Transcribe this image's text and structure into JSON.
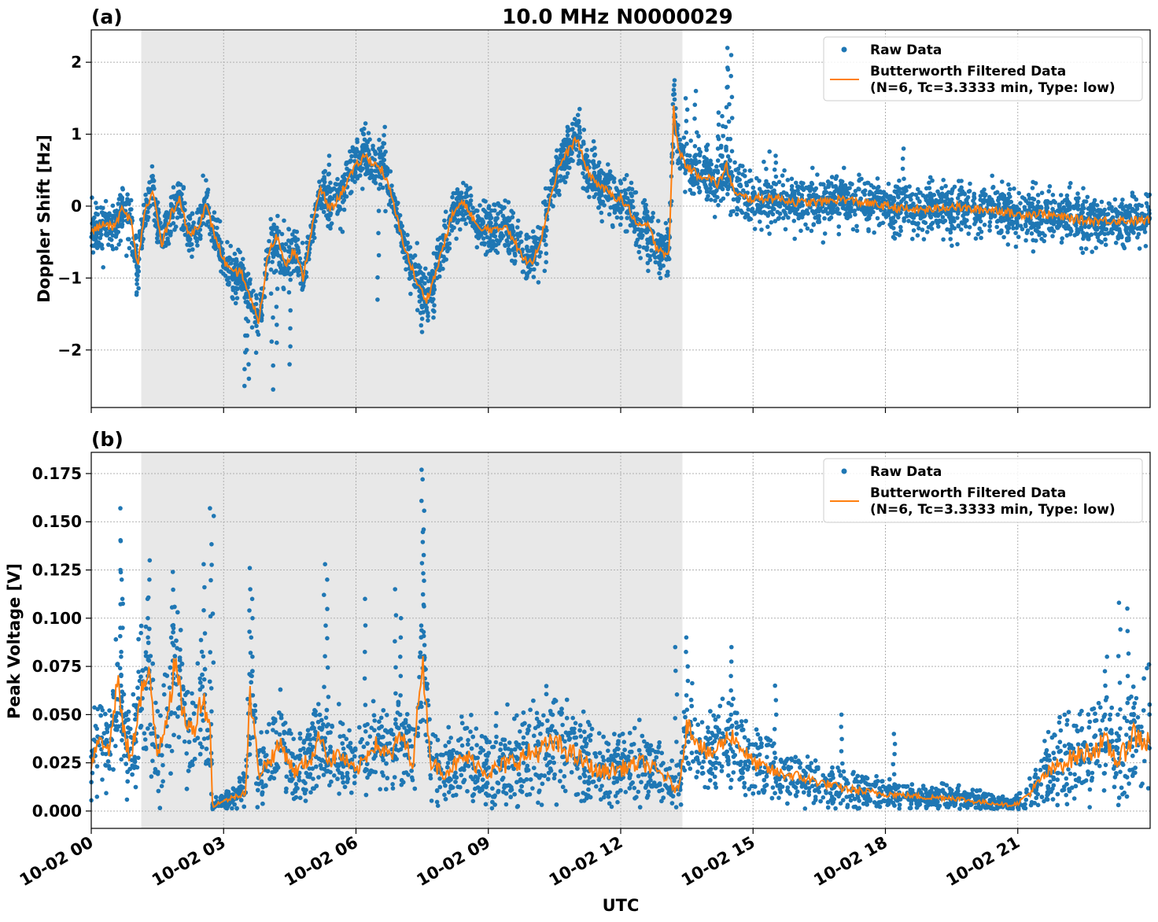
{
  "figure": {
    "title": "10.0 MHz N0000029",
    "xlabel": "UTC"
  },
  "colors": {
    "raw": "#1f77b4",
    "filtered": "#ff7f0e",
    "shade": "#e8e8e8",
    "grid": "#b0b0b0"
  },
  "chart_data": [
    {
      "type": "scatter",
      "panel_label": "(a)",
      "ylabel": "Doppler Shift [Hz]",
      "xlim": [
        "10-02 00:00",
        "10-03 00:00"
      ],
      "ylim": [
        -2.8,
        2.45
      ],
      "x_ticks": [
        "10-02 00",
        "10-02 03",
        "10-02 06",
        "10-02 09",
        "10-02 12",
        "10-02 15",
        "10-02 18",
        "10-02 21"
      ],
      "y_ticks": [
        {
          "value": 2,
          "label": "2"
        },
        {
          "value": 1,
          "label": "1"
        },
        {
          "value": 0,
          "label": "0"
        },
        {
          "value": -1,
          "label": "−1"
        },
        {
          "value": -2,
          "label": "−2"
        }
      ],
      "shaded_interval": [
        "10-02 01:08",
        "10-02 13:24"
      ],
      "grid": true,
      "legend": {
        "placement": "top-right",
        "entries": [
          {
            "label": "Raw Data"
          },
          {
            "label": "Butterworth Filtered Data",
            "label2": "(N=6, Tc=3.3333 min, Type: low)"
          }
        ]
      },
      "series": [
        {
          "name": "Butterworth Filtered Data",
          "kind": "line",
          "x_hours": [
            0,
            0.3,
            0.5,
            0.7,
            0.9,
            1.05,
            1.2,
            1.4,
            1.6,
            1.8,
            2.0,
            2.2,
            2.4,
            2.6,
            2.8,
            3.0,
            3.2,
            3.4,
            3.6,
            3.8,
            4.0,
            4.2,
            4.4,
            4.6,
            4.8,
            5.0,
            5.2,
            5.4,
            5.6,
            5.8,
            6.0,
            6.2,
            6.4,
            6.6,
            6.8,
            7.0,
            7.2,
            7.4,
            7.6,
            7.8,
            8.0,
            8.2,
            8.4,
            8.6,
            8.8,
            9.0,
            9.2,
            9.4,
            9.6,
            9.8,
            10.0,
            10.2,
            10.4,
            10.6,
            10.8,
            11.0,
            11.2,
            11.4,
            11.6,
            11.8,
            12.0,
            12.2,
            12.4,
            12.6,
            12.8,
            13.0,
            13.1,
            13.2,
            13.3,
            13.5,
            13.7,
            14.0,
            14.2,
            14.4,
            14.6,
            15.0,
            15.5,
            16.0,
            16.5,
            17.0,
            17.5,
            18.0,
            18.5,
            19.0,
            19.5,
            20.0,
            20.5,
            21.0,
            21.5,
            22.0,
            22.5,
            23.0,
            23.5,
            24.0
          ],
          "y": [
            -0.35,
            -0.25,
            -0.3,
            -0.05,
            -0.2,
            -0.85,
            -0.1,
            0.2,
            -0.55,
            -0.1,
            0.1,
            -0.4,
            -0.3,
            0.0,
            -0.4,
            -0.75,
            -0.95,
            -0.9,
            -1.3,
            -1.6,
            -0.7,
            -0.4,
            -0.8,
            -0.6,
            -1.0,
            -0.3,
            0.25,
            -0.05,
            0.1,
            0.35,
            0.55,
            0.7,
            0.6,
            0.5,
            0.15,
            -0.35,
            -0.75,
            -1.1,
            -1.3,
            -0.95,
            -0.5,
            -0.1,
            0.05,
            -0.1,
            -0.35,
            -0.3,
            -0.35,
            -0.25,
            -0.5,
            -0.75,
            -0.75,
            -0.45,
            0.1,
            0.55,
            0.75,
            0.95,
            0.55,
            0.35,
            0.25,
            0.15,
            0.1,
            -0.05,
            -0.3,
            -0.25,
            -0.55,
            -0.65,
            -0.65,
            1.35,
            0.8,
            0.55,
            0.45,
            0.4,
            0.3,
            0.55,
            0.15,
            0.1,
            0.12,
            0.05,
            0.05,
            0.1,
            0.05,
            0.0,
            -0.05,
            -0.05,
            0.0,
            -0.05,
            -0.05,
            -0.12,
            -0.1,
            -0.15,
            -0.2,
            -0.2,
            -0.2,
            -0.2
          ]
        },
        {
          "name": "Raw Data",
          "kind": "points",
          "note_spread": "scatter spread around filtered curve",
          "x_hours": [
            0.7,
            1.05,
            1.5,
            2.0,
            3.0,
            3.3,
            3.5,
            3.55,
            4.1,
            4.2,
            4.5,
            5.4,
            6.2,
            6.5,
            6.65,
            7.5,
            7.75,
            10.3,
            10.8,
            11.05,
            11.4,
            12.6,
            12.9,
            13.2,
            13.25,
            13.5,
            13.7,
            14.2,
            14.3,
            14.4,
            14.45,
            14.5,
            15.5,
            17.0,
            18.2,
            18.4,
            19.0,
            19.5,
            20.8
          ],
          "y": [
            0.05,
            -1.2,
            -0.5,
            0.2,
            -0.85,
            -1.35,
            -2.5,
            -2.4,
            -2.55,
            -1.9,
            -2.2,
            0.7,
            1.15,
            -1.3,
            1.1,
            -1.75,
            -1.55,
            -0.9,
            1.1,
            1.35,
            0.9,
            -0.9,
            -1.0,
            1.75,
            1.0,
            1.5,
            1.6,
            1.3,
            1.25,
            2.2,
            1.9,
            2.1,
            0.7,
            0.35,
            -0.45,
            0.8,
            0.4,
            -0.55,
            0.3
          ]
        }
      ]
    },
    {
      "type": "scatter",
      "panel_label": "(b)",
      "ylabel": "Peak Voltage [V]",
      "xlim": [
        "10-02 00:00",
        "10-03 00:00"
      ],
      "ylim": [
        -0.009,
        0.186
      ],
      "x_ticks": [
        "10-02 00",
        "10-02 03",
        "10-02 06",
        "10-02 09",
        "10-02 12",
        "10-02 15",
        "10-02 18",
        "10-02 21"
      ],
      "y_ticks": [
        {
          "value": 0.175,
          "label": "0.175"
        },
        {
          "value": 0.15,
          "label": "0.150"
        },
        {
          "value": 0.125,
          "label": "0.125"
        },
        {
          "value": 0.1,
          "label": "0.100"
        },
        {
          "value": 0.075,
          "label": "0.075"
        },
        {
          "value": 0.05,
          "label": "0.050"
        },
        {
          "value": 0.025,
          "label": "0.025"
        },
        {
          "value": 0.0,
          "label": "0.000"
        }
      ],
      "shaded_interval": [
        "10-02 01:08",
        "10-02 13:24"
      ],
      "grid": true,
      "legend": {
        "placement": "top-right",
        "entries": [
          {
            "label": "Raw Data"
          },
          {
            "label": "Butterworth Filtered Data",
            "label2": "(N=6, Tc=3.3333 min, Type: low)"
          }
        ]
      },
      "series": [
        {
          "name": "Butterworth Filtered Data",
          "kind": "line",
          "x_hours": [
            0,
            0.2,
            0.4,
            0.6,
            0.7,
            0.9,
            1.1,
            1.3,
            1.5,
            1.7,
            1.9,
            2.1,
            2.3,
            2.5,
            2.7,
            2.75,
            2.85,
            3.0,
            3.3,
            3.5,
            3.6,
            3.8,
            4.0,
            4.3,
            4.6,
            5.0,
            5.2,
            5.4,
            5.6,
            6.0,
            6.4,
            6.8,
            7.0,
            7.3,
            7.5,
            7.7,
            8.0,
            8.5,
            9.0,
            9.5,
            10.0,
            10.5,
            11.0,
            11.5,
            12.0,
            12.5,
            13.0,
            13.3,
            13.5,
            13.8,
            14.0,
            14.5,
            15.0,
            15.5,
            16.0,
            16.5,
            17.0,
            17.5,
            18.0,
            18.5,
            19.0,
            19.5,
            20.0,
            20.5,
            20.8,
            21.0,
            21.3,
            21.6,
            22.0,
            22.5,
            23.0,
            23.3,
            23.6,
            24.0
          ],
          "y": [
            0.025,
            0.04,
            0.03,
            0.07,
            0.045,
            0.025,
            0.06,
            0.07,
            0.03,
            0.05,
            0.075,
            0.05,
            0.04,
            0.06,
            0.045,
            0.001,
            0.004,
            0.005,
            0.008,
            0.01,
            0.06,
            0.02,
            0.025,
            0.035,
            0.02,
            0.028,
            0.04,
            0.025,
            0.03,
            0.02,
            0.035,
            0.028,
            0.04,
            0.025,
            0.08,
            0.025,
            0.02,
            0.028,
            0.02,
            0.025,
            0.03,
            0.035,
            0.028,
            0.02,
            0.022,
            0.025,
            0.018,
            0.01,
            0.045,
            0.035,
            0.028,
            0.04,
            0.025,
            0.02,
            0.018,
            0.015,
            0.012,
            0.01,
            0.009,
            0.008,
            0.007,
            0.007,
            0.005,
            0.004,
            0.003,
            0.004,
            0.01,
            0.018,
            0.025,
            0.03,
            0.035,
            0.025,
            0.04,
            0.035
          ],
          "spread": [
            0.018,
            0.02,
            0.02,
            0.035,
            0.025,
            0.02,
            0.03,
            0.035,
            0.025,
            0.035,
            0.035,
            0.028,
            0.025,
            0.03,
            0.025,
            0.002,
            0.003,
            0.004,
            0.006,
            0.008,
            0.03,
            0.015,
            0.018,
            0.02,
            0.015,
            0.018,
            0.02,
            0.018,
            0.018,
            0.015,
            0.02,
            0.018,
            0.022,
            0.018,
            0.03,
            0.018,
            0.015,
            0.02,
            0.018,
            0.022,
            0.025,
            0.025,
            0.022,
            0.018,
            0.018,
            0.018,
            0.015,
            0.01,
            0.022,
            0.02,
            0.018,
            0.02,
            0.016,
            0.014,
            0.012,
            0.01,
            0.009,
            0.008,
            0.007,
            0.006,
            0.006,
            0.006,
            0.005,
            0.004,
            0.003,
            0.004,
            0.008,
            0.014,
            0.02,
            0.022,
            0.025,
            0.022,
            0.03,
            0.03
          ]
        },
        {
          "name": "Raw Data",
          "kind": "points",
          "x_hours": [
            0.65,
            0.68,
            0.7,
            1.3,
            1.85,
            2.55,
            2.7,
            2.75,
            3.6,
            3.65,
            5.3,
            5.35,
            6.2,
            6.9,
            7.0,
            7.5,
            7.52,
            7.55,
            13.25,
            13.5,
            14.5,
            15.5,
            17.0,
            18.2,
            23.0,
            23.3,
            23.5
          ],
          "y": [
            0.157,
            0.14,
            0.12,
            0.13,
            0.124,
            0.128,
            0.157,
            0.153,
            0.126,
            0.11,
            0.128,
            0.12,
            0.11,
            0.115,
            0.1,
            0.177,
            0.172,
            0.146,
            0.085,
            0.09,
            0.085,
            0.065,
            0.05,
            0.04,
            0.08,
            0.108,
            0.105
          ]
        }
      ]
    }
  ]
}
